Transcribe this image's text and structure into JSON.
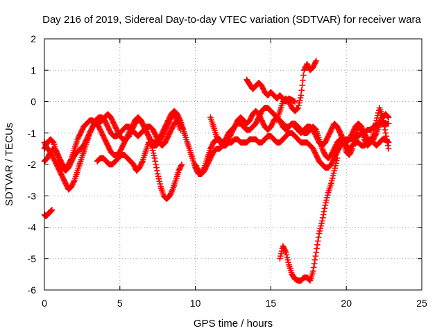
{
  "chart_data": {
    "type": "scatter",
    "title": "Day 216 of 2019, Sidereal Day-to-day VTEC variation (SDTVAR) for receiver wara",
    "xlabel": "GPS time / hours",
    "ylabel": "SDTVAR / TECUs",
    "xlim": [
      0,
      25
    ],
    "ylim": [
      -6,
      2
    ],
    "x_ticks": [
      "0",
      "5",
      "10",
      "15",
      "20",
      "25"
    ],
    "y_ticks": [
      "-6",
      "-5",
      "-4",
      "-3",
      "-2",
      "-1",
      "0",
      "1",
      "2"
    ],
    "grid": true,
    "marker": "+",
    "color": "#ff0000",
    "series": [
      {
        "x": [
          0.0,
          0.2,
          0.4,
          0.6,
          0.8,
          1.0,
          1.2,
          1.4,
          1.6,
          1.8,
          2.0,
          2.2,
          2.4,
          2.6,
          2.8,
          3.0,
          3.2,
          3.4,
          3.6,
          3.8,
          4.0,
          4.2,
          4.4,
          4.6,
          4.8,
          5.0,
          5.2,
          5.4,
          5.6,
          5.8,
          6.0,
          6.2,
          6.4,
          6.6,
          6.8,
          7.0,
          7.2,
          7.4,
          7.6,
          7.8,
          8.0,
          8.2,
          8.4,
          8.6,
          8.8,
          9.0,
          9.2
        ],
        "y": [
          -1.3,
          -1.5,
          -1.6,
          -1.8,
          -2.0,
          -2.2,
          -2.4,
          -2.6,
          -2.8,
          -2.7,
          -2.5,
          -2.2,
          -1.9,
          -1.6,
          -1.3,
          -1.0,
          -0.8,
          -0.7,
          -0.8,
          -1.0,
          -1.2,
          -1.4,
          -1.6,
          -1.7,
          -1.7,
          -1.6,
          -1.4,
          -1.2,
          -1.0,
          -0.8,
          -0.6,
          -0.5,
          -0.6,
          -0.8,
          -1.0,
          -1.2,
          -1.3,
          -1.3,
          -1.2,
          -1.0,
          -0.8,
          -0.6,
          -0.4,
          -0.3,
          -0.4,
          -0.6,
          -0.9
        ]
      },
      {
        "x": [
          0.0,
          0.2,
          0.4,
          0.6,
          0.8,
          1.0,
          1.2,
          1.4,
          1.6,
          1.8,
          2.0,
          2.2,
          2.4,
          2.6,
          2.8,
          3.0,
          3.2,
          3.4,
          3.6,
          3.8,
          4.0,
          4.2,
          4.4,
          4.6,
          4.8,
          5.0,
          5.2,
          5.4,
          5.6,
          5.8,
          6.0,
          6.2,
          6.4,
          6.6,
          6.8,
          7.0,
          7.2,
          7.4,
          7.6,
          7.8,
          8.0,
          8.2,
          8.4,
          8.6,
          8.8,
          9.0
        ],
        "y": [
          -1.9,
          -1.8,
          -1.6,
          -1.5,
          -1.6,
          -1.8,
          -2.0,
          -2.1,
          -2.0,
          -1.8,
          -1.5,
          -1.2,
          -1.0,
          -0.8,
          -0.7,
          -0.6,
          -0.6,
          -0.7,
          -0.7,
          -0.6,
          -0.5,
          -0.4,
          -0.5,
          -0.7,
          -0.9,
          -1.1,
          -1.2,
          -1.2,
          -1.1,
          -0.9,
          -0.7,
          -0.6,
          -0.6,
          -0.8,
          -1.0,
          -1.2,
          -1.4,
          -1.4,
          -1.3,
          -1.1,
          -0.9,
          -0.7,
          -0.5,
          -0.4,
          -0.6,
          -0.9
        ]
      },
      {
        "x": [
          0.0,
          0.2,
          0.4,
          0.6,
          0.8,
          1.0,
          1.2,
          1.4,
          1.6,
          1.8,
          2.0,
          2.2,
          2.4,
          2.6,
          2.8,
          3.0,
          3.2,
          3.4,
          3.6,
          3.8,
          4.0,
          4.2,
          4.4,
          4.6,
          4.8,
          5.0,
          5.2,
          5.4,
          5.6,
          5.8,
          6.0,
          6.2,
          6.4,
          6.6,
          6.8,
          7.0,
          7.2,
          7.4,
          7.6,
          7.8,
          8.0,
          8.2,
          8.4,
          8.6,
          8.8,
          9.0,
          9.2,
          9.4,
          9.6,
          9.8,
          10.0,
          10.2,
          10.4
        ],
        "y": [
          -1.5,
          -1.3,
          -1.2,
          -1.3,
          -1.6,
          -1.9,
          -2.1,
          -2.2,
          -2.1,
          -1.9,
          -1.7,
          -1.6,
          -1.5,
          -1.4,
          -1.2,
          -1.0,
          -0.8,
          -0.6,
          -0.5,
          -0.5,
          -0.6,
          -0.8,
          -1.0,
          -1.1,
          -1.1,
          -1.0,
          -0.9,
          -0.8,
          -0.8,
          -0.9,
          -1.0,
          -1.1,
          -1.0,
          -0.9,
          -0.8,
          -0.8,
          -0.9,
          -1.1,
          -1.3,
          -1.4,
          -1.3,
          -1.1,
          -0.9,
          -0.7,
          -0.6,
          -0.7,
          -0.9,
          -1.2,
          -1.5,
          -1.8,
          -2.1,
          -2.3,
          -2.3
        ]
      },
      {
        "x": [
          3.5,
          3.7,
          3.9,
          4.1,
          4.3,
          4.5,
          4.7,
          4.9,
          5.1,
          5.3,
          5.5,
          5.7,
          5.9,
          6.1,
          6.3,
          6.5,
          6.7,
          6.9,
          7.1,
          7.3,
          7.5,
          7.7,
          7.9,
          8.1,
          8.3,
          8.5,
          8.7,
          8.9,
          9.1
        ],
        "y": [
          -1.9,
          -1.8,
          -1.8,
          -1.9,
          -2.0,
          -2.0,
          -1.9,
          -1.8,
          -1.7,
          -1.7,
          -1.8,
          -1.9,
          -2.0,
          -2.2,
          -2.1,
          -1.9,
          -1.6,
          -1.3,
          -1.4,
          -1.8,
          -2.3,
          -2.7,
          -3.0,
          -3.1,
          -3.0,
          -2.8,
          -2.5,
          -2.2,
          -2.0
        ]
      },
      {
        "x": [
          0.0,
          0.1,
          0.2,
          0.3,
          0.4,
          0.5
        ],
        "y": [
          -3.6,
          -3.65,
          -3.6,
          -3.55,
          -3.5,
          -3.45
        ]
      },
      {
        "x": [
          10.0,
          10.2,
          10.4,
          10.6,
          10.8,
          11.0,
          11.2,
          11.4,
          11.6,
          11.8,
          12.0,
          12.2,
          12.4,
          12.6,
          12.8,
          13.0,
          13.2,
          13.4,
          13.6,
          13.8,
          14.0,
          14.2,
          14.4,
          14.6,
          14.8,
          15.0,
          15.2,
          15.4,
          15.6,
          15.8,
          16.0,
          16.2,
          16.4,
          16.6,
          16.8,
          17.0,
          17.2,
          17.4,
          17.6,
          17.8,
          18.0,
          18.2,
          18.4,
          18.6,
          18.8,
          19.0,
          19.2,
          19.4,
          19.6,
          19.8,
          20.0,
          20.2,
          20.4,
          20.6,
          20.8,
          21.0,
          21.2,
          21.4,
          21.6,
          21.8,
          22.0,
          22.2,
          22.4,
          22.6,
          22.8
        ],
        "y": [
          -2.0,
          -2.2,
          -2.3,
          -2.2,
          -2.0,
          -1.8,
          -1.6,
          -1.5,
          -1.5,
          -1.4,
          -1.4,
          -1.3,
          -1.3,
          -1.2,
          -1.2,
          -1.3,
          -1.3,
          -1.3,
          -1.2,
          -1.2,
          -1.2,
          -1.3,
          -1.3,
          -1.2,
          -1.1,
          -1.1,
          -1.2,
          -1.3,
          -1.3,
          -1.2,
          -1.1,
          -1.0,
          -1.0,
          -1.1,
          -1.2,
          -1.3,
          -1.3,
          -1.3,
          -1.4,
          -1.5,
          -1.7,
          -1.9,
          -2.0,
          -2.1,
          -2.1,
          -2.0,
          -1.8,
          -1.6,
          -1.4,
          -1.3,
          -1.2,
          -1.2,
          -1.2,
          -1.1,
          -1.1,
          -1.0,
          -1.0,
          -0.9,
          -0.9,
          -0.8,
          -0.8,
          -0.7,
          -0.7,
          -0.7,
          -0.7
        ]
      },
      {
        "x": [
          10.4,
          10.6,
          10.8,
          11.0,
          11.2,
          11.4,
          11.6,
          11.8,
          12.0,
          12.2,
          12.4,
          12.6,
          12.8,
          13.0,
          13.2,
          13.4,
          13.6,
          13.8,
          14.0,
          14.2,
          14.4,
          14.6,
          14.8,
          15.0,
          15.2,
          15.4,
          15.6,
          15.8,
          16.0,
          16.2,
          16.4,
          16.6,
          16.8,
          17.0,
          17.2,
          17.4,
          17.6,
          17.8,
          18.0,
          18.2,
          18.4,
          18.6,
          18.8,
          19.0,
          19.2,
          19.4,
          19.6,
          19.8,
          20.0,
          20.2,
          20.4,
          20.6,
          20.8,
          21.0,
          21.2,
          21.4,
          21.6,
          21.8,
          22.0,
          22.2,
          22.4,
          22.6,
          22.8
        ],
        "y": [
          -2.3,
          -2.1,
          -1.8,
          -1.5,
          -1.3,
          -1.2,
          -1.2,
          -1.3,
          -1.3,
          -1.2,
          -1.0,
          -0.8,
          -0.6,
          -0.5,
          -0.6,
          -0.7,
          -0.6,
          -0.4,
          -0.3,
          -0.4,
          -0.6,
          -0.8,
          -0.9,
          -0.8,
          -0.6,
          -0.5,
          -0.6,
          -0.8,
          -0.9,
          -0.8,
          -0.7,
          -0.8,
          -0.9,
          -1.0,
          -0.9,
          -0.8,
          -0.8,
          -0.9,
          -1.1,
          -1.3,
          -1.4,
          -1.3,
          -1.1,
          -0.9,
          -0.7,
          -0.8,
          -1.0,
          -1.2,
          -1.4,
          -1.5,
          -1.4,
          -1.3,
          -1.3,
          -1.4,
          -1.4,
          -1.3,
          -1.2,
          -1.3,
          -1.4,
          -1.3,
          -1.2,
          -1.2,
          -1.3
        ]
      },
      {
        "x": [
          11.0,
          11.2,
          11.4,
          11.6,
          11.8,
          12.0,
          12.2,
          12.4,
          12.6,
          12.8,
          13.0,
          13.2,
          13.4,
          13.6,
          13.8,
          14.0,
          14.2,
          14.4,
          14.6,
          14.8,
          15.0,
          15.2,
          15.4,
          15.6,
          15.8,
          16.0,
          16.2,
          16.4,
          16.6,
          16.8,
          17.0,
          17.2,
          17.4,
          17.6,
          17.8,
          18.0,
          18.2,
          18.4,
          18.6,
          18.8,
          19.0,
          19.2,
          19.4,
          19.6,
          19.8,
          20.0,
          20.2,
          20.4,
          20.6,
          20.8,
          21.0,
          21.2,
          21.4,
          21.6,
          21.8,
          22.0,
          22.2,
          22.4,
          22.6,
          22.8
        ],
        "y": [
          -0.5,
          -0.8,
          -1.1,
          -1.3,
          -1.3,
          -1.2,
          -1.0,
          -0.9,
          -0.8,
          -0.7,
          -0.7,
          -0.8,
          -0.9,
          -0.9,
          -0.8,
          -0.7,
          -0.5,
          -0.3,
          -0.2,
          -0.2,
          -0.3,
          -0.4,
          -0.5,
          -0.6,
          -0.7,
          -0.8,
          -0.8,
          -0.7,
          -0.7,
          -0.8,
          -0.9,
          -1.0,
          -1.0,
          -0.9,
          -0.8,
          -0.9,
          -1.2,
          -1.5,
          -1.7,
          -1.8,
          -1.7,
          -1.5,
          -1.3,
          -1.2,
          -1.2,
          -1.3,
          -1.2,
          -1.0,
          -0.8,
          -0.7,
          -0.8,
          -1.0,
          -1.2,
          -1.3,
          -1.2,
          -1.0,
          -0.7,
          -0.5,
          -0.4,
          -0.5
        ]
      },
      {
        "x": [
          13.4,
          13.6,
          13.8,
          14.0,
          14.2,
          14.4,
          14.6,
          14.8,
          15.0,
          15.2,
          15.4,
          15.6,
          15.8,
          16.0,
          16.2,
          16.4,
          16.6
        ],
        "y": [
          0.7,
          0.55,
          0.4,
          0.5,
          0.6,
          0.5,
          0.3,
          0.2,
          0.3,
          0.2,
          0.1,
          0.2,
          0.1,
          0.0,
          0.1,
          0.05,
          0.0
        ]
      },
      {
        "x": [
          15.4,
          15.6,
          15.8,
          16.0,
          16.2,
          16.4,
          16.6,
          16.8,
          17.0,
          17.2,
          17.4,
          17.6,
          17.8,
          18.0
        ],
        "y": [
          -0.6,
          -0.3,
          0.0,
          0.1,
          0.0,
          -0.2,
          -0.3,
          -0.2,
          0.2,
          1.0,
          1.2,
          1.0,
          1.1,
          1.3
        ]
      },
      {
        "x": [
          15.6,
          15.8,
          16.0,
          16.2,
          16.4,
          16.6,
          16.8,
          17.0,
          17.2,
          17.4,
          17.6,
          17.8,
          18.0,
          18.2,
          18.4,
          18.6,
          18.8,
          19.0,
          19.2,
          19.4
        ],
        "y": [
          -5.0,
          -4.6,
          -4.8,
          -5.2,
          -5.5,
          -5.65,
          -5.7,
          -5.7,
          -5.6,
          -5.6,
          -5.7,
          -5.4,
          -4.8,
          -4.2,
          -3.8,
          -3.3,
          -2.9,
          -2.6,
          -2.2,
          -1.8
        ]
      },
      {
        "x": [
          19.4,
          19.6,
          19.8,
          20.0,
          20.2,
          20.4,
          20.6,
          20.8,
          21.0,
          21.2,
          21.4,
          21.6,
          21.8,
          22.0,
          22.2,
          22.4,
          22.6,
          22.8
        ],
        "y": [
          -0.8,
          -1.0,
          -1.3,
          -1.6,
          -1.7,
          -1.5,
          -1.1,
          -0.8,
          -0.9,
          -1.2,
          -1.4,
          -1.3,
          -1.0,
          -0.6,
          -0.2,
          -0.5,
          -1.0,
          -1.5
        ]
      }
    ]
  }
}
